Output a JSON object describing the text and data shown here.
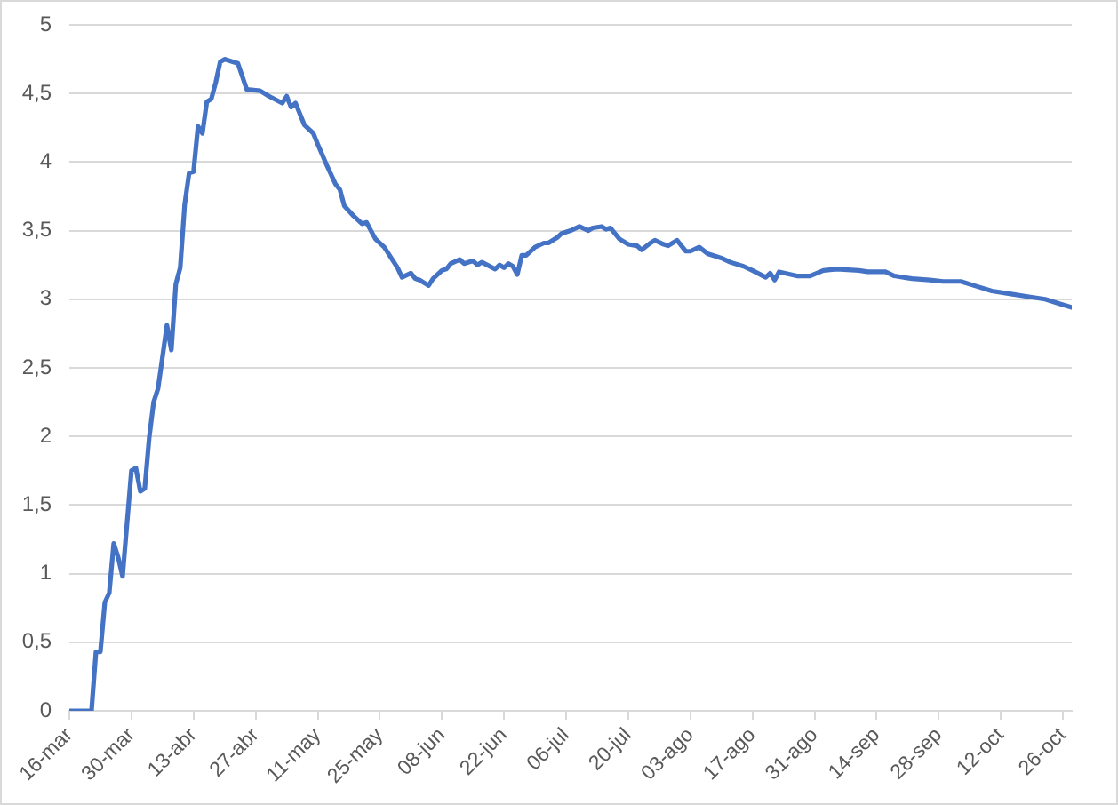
{
  "chart_data": {
    "type": "line",
    "x": [
      "--03-16",
      "--03-21",
      "--03-22",
      "--03-23",
      "--03-24",
      "--03-25",
      "--03-26",
      "--03-27",
      "--03-28",
      "--03-30",
      "--03-31",
      "--04-01",
      "--04-02",
      "--04-03",
      "--04-04",
      "--04-05",
      "--04-07",
      "--04-08",
      "--04-09",
      "--04-10",
      "--04-11",
      "--04-12",
      "--04-13",
      "--04-14",
      "--04-15",
      "--04-16",
      "--04-17",
      "--04-18",
      "--04-19",
      "--04-20",
      "--04-22",
      "--04-23",
      "--04-25",
      "--04-28",
      "--04-30",
      "--05-03",
      "--05-04",
      "--05-05",
      "--05-06",
      "--05-08",
      "--05-10",
      "--05-11",
      "--05-13",
      "--05-15",
      "--05-16",
      "--05-17",
      "--05-19",
      "--05-21",
      "--05-22",
      "--05-24",
      "--05-26",
      "--05-27",
      "--05-29",
      "--05-30",
      "--06-01",
      "--06-02",
      "--06-03",
      "--06-05",
      "--06-06",
      "--06-08",
      "--06-09",
      "--06-10",
      "--06-12",
      "--06-13",
      "--06-15",
      "--06-16",
      "--06-17",
      "--06-20",
      "--06-21",
      "--06-22",
      "--06-23",
      "--06-24",
      "--06-25",
      "--06-26",
      "--06-27",
      "--06-29",
      "--07-01",
      "--07-02",
      "--07-04",
      "--07-05",
      "--07-07",
      "--07-09",
      "--07-11",
      "--07-12",
      "--07-14",
      "--07-15",
      "--07-16",
      "--07-18",
      "--07-20",
      "--07-22",
      "--07-23",
      "--07-25",
      "--07-26",
      "--07-28",
      "--07-29",
      "--07-31",
      "--08-02",
      "--08-03",
      "--08-05",
      "--08-07",
      "--08-10",
      "--08-12",
      "--08-15",
      "--08-17",
      "--08-20",
      "--08-21",
      "--08-22",
      "--08-23",
      "--08-27",
      "--08-30",
      "--09-02",
      "--09-05",
      "--09-10",
      "--09-12",
      "--09-16",
      "--09-18",
      "--09-22",
      "--09-26",
      "--09-29",
      "--10-03",
      "--10-06",
      "--10-10",
      "--10-14",
      "--10-18",
      "--10-22",
      "--10-25",
      "--10-28"
    ],
    "series": [
      {
        "color": "#4472c4",
        "values": [
          0,
          0,
          0.43,
          0.43,
          0.79,
          0.86,
          1.22,
          1.12,
          0.98,
          1.75,
          1.77,
          1.6,
          1.62,
          1.99,
          2.25,
          2.35,
          2.81,
          2.63,
          3.11,
          3.23,
          3.69,
          3.92,
          3.93,
          4.26,
          4.21,
          4.44,
          4.46,
          4.58,
          4.73,
          4.75,
          4.73,
          4.72,
          4.53,
          4.52,
          4.48,
          4.43,
          4.48,
          4.4,
          4.43,
          4.27,
          4.21,
          4.13,
          3.98,
          3.84,
          3.8,
          3.68,
          3.61,
          3.55,
          3.56,
          3.44,
          3.38,
          3.33,
          3.23,
          3.16,
          3.19,
          3.15,
          3.14,
          3.1,
          3.15,
          3.21,
          3.22,
          3.26,
          3.29,
          3.26,
          3.28,
          3.25,
          3.27,
          3.22,
          3.25,
          3.23,
          3.26,
          3.24,
          3.18,
          3.32,
          3.32,
          3.38,
          3.41,
          3.41,
          3.45,
          3.48,
          3.5,
          3.53,
          3.5,
          3.52,
          3.53,
          3.51,
          3.52,
          3.44,
          3.4,
          3.39,
          3.36,
          3.41,
          3.43,
          3.4,
          3.39,
          3.43,
          3.35,
          3.35,
          3.38,
          3.33,
          3.3,
          3.27,
          3.24,
          3.21,
          3.16,
          3.19,
          3.14,
          3.2,
          3.17,
          3.17,
          3.21,
          3.22,
          3.21,
          3.2,
          3.2,
          3.17,
          3.15,
          3.14,
          3.13,
          3.13,
          3.1,
          3.06,
          3.04,
          3.02,
          3,
          2.97,
          2.94
        ]
      }
    ],
    "xlim": [
      "--03-16",
      "--10-28"
    ],
    "xticks": [
      {
        "value": "--03-16",
        "label": "16-mar"
      },
      {
        "value": "--03-30",
        "label": "30-mar"
      },
      {
        "value": "--04-13",
        "label": "13-abr"
      },
      {
        "value": "--04-27",
        "label": "27-abr"
      },
      {
        "value": "--05-11",
        "label": "11-may"
      },
      {
        "value": "--05-25",
        "label": "25-may"
      },
      {
        "value": "--06-08",
        "label": "08-jun"
      },
      {
        "value": "--06-22",
        "label": "22-jun"
      },
      {
        "value": "--07-06",
        "label": "06-jul"
      },
      {
        "value": "--07-20",
        "label": "20-jul"
      },
      {
        "value": "--08-03",
        "label": "03-ago"
      },
      {
        "value": "--08-17",
        "label": "17-ago"
      },
      {
        "value": "--08-31",
        "label": "31-ago"
      },
      {
        "value": "--09-14",
        "label": "14-sep"
      },
      {
        "value": "--09-28",
        "label": "28-sep"
      },
      {
        "value": "--10-12",
        "label": "12-oct"
      },
      {
        "value": "--10-26",
        "label": "26-oct"
      }
    ],
    "ylim": [
      0,
      5
    ],
    "yticks": [
      0,
      {
        "value": 0.5,
        "label": "0,5"
      },
      1,
      {
        "value": 1.5,
        "label": "1,5"
      },
      2,
      {
        "value": 2.5,
        "label": "2,5"
      },
      3,
      {
        "value": 3.5,
        "label": "3,5"
      },
      4,
      {
        "value": 4.5,
        "label": "4,5"
      },
      5
    ],
    "grid": "y",
    "marker": "none"
  }
}
